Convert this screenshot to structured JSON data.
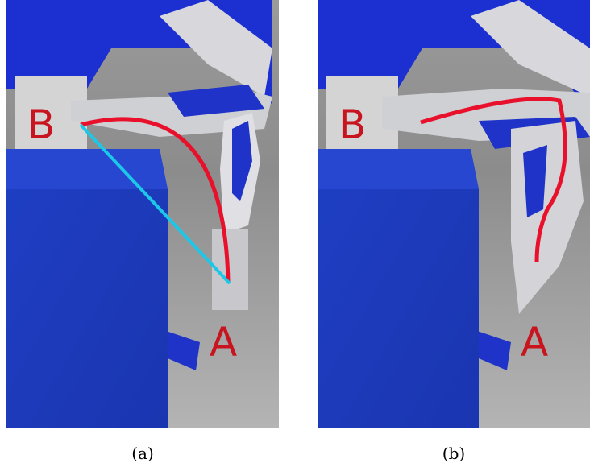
{
  "panels": [
    {
      "caption": "(a)",
      "markers": [
        "B",
        "A"
      ]
    },
    {
      "caption": "(b)",
      "markers": [
        "B",
        "A"
      ]
    }
  ]
}
